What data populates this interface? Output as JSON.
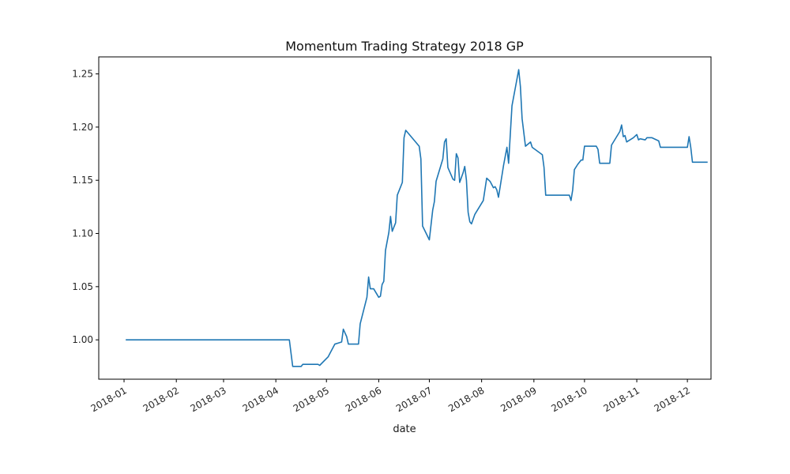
{
  "chart_data": {
    "type": "line",
    "title": "Momentum Trading Strategy 2018 GP",
    "xlabel": "date",
    "ylabel": "",
    "xlim": [
      "2017-12-17",
      "2018-12-15"
    ],
    "ylim": [
      0.963,
      1.266
    ],
    "grid": false,
    "x_ticks": [
      "2018-01",
      "2018-02",
      "2018-03",
      "2018-04",
      "2018-05",
      "2018-06",
      "2018-07",
      "2018-08",
      "2018-09",
      "2018-10",
      "2018-11",
      "2018-12"
    ],
    "y_ticks": [
      "1.00",
      "1.05",
      "1.10",
      "1.15",
      "1.20",
      "1.25"
    ],
    "series": [
      {
        "color": "#1f77b4",
        "points": [
          [
            "2018-01-02",
            1.0
          ],
          [
            "2018-04-09",
            1.0
          ],
          [
            "2018-04-11",
            0.975
          ],
          [
            "2018-04-16",
            0.975
          ],
          [
            "2018-04-17",
            0.977
          ],
          [
            "2018-04-26",
            0.977
          ],
          [
            "2018-04-27",
            0.976
          ],
          [
            "2018-05-02",
            0.984
          ],
          [
            "2018-05-03",
            0.987
          ],
          [
            "2018-05-06",
            0.996
          ],
          [
            "2018-05-08",
            0.997
          ],
          [
            "2018-05-10",
            0.998
          ],
          [
            "2018-05-11",
            1.01
          ],
          [
            "2018-05-13",
            1.003
          ],
          [
            "2018-05-14",
            0.996
          ],
          [
            "2018-05-20",
            0.996
          ],
          [
            "2018-05-21",
            1.015
          ],
          [
            "2018-05-25",
            1.04
          ],
          [
            "2018-05-26",
            1.059
          ],
          [
            "2018-05-27",
            1.048
          ],
          [
            "2018-05-29",
            1.048
          ],
          [
            "2018-06-01",
            1.04
          ],
          [
            "2018-06-02",
            1.041
          ],
          [
            "2018-06-03",
            1.052
          ],
          [
            "2018-06-04",
            1.055
          ],
          [
            "2018-06-05",
            1.084
          ],
          [
            "2018-06-07",
            1.101
          ],
          [
            "2018-06-08",
            1.116
          ],
          [
            "2018-06-09",
            1.102
          ],
          [
            "2018-06-11",
            1.11
          ],
          [
            "2018-06-12",
            1.136
          ],
          [
            "2018-06-15",
            1.148
          ],
          [
            "2018-06-16",
            1.19
          ],
          [
            "2018-06-17",
            1.197
          ],
          [
            "2018-06-25",
            1.182
          ],
          [
            "2018-06-26",
            1.17
          ],
          [
            "2018-06-27",
            1.107
          ],
          [
            "2018-07-01",
            1.094
          ],
          [
            "2018-07-03",
            1.122
          ],
          [
            "2018-07-04",
            1.13
          ],
          [
            "2018-07-05",
            1.149
          ],
          [
            "2018-07-09",
            1.17
          ],
          [
            "2018-07-10",
            1.186
          ],
          [
            "2018-07-11",
            1.189
          ],
          [
            "2018-07-12",
            1.162
          ],
          [
            "2018-07-15",
            1.151
          ],
          [
            "2018-07-16",
            1.15
          ],
          [
            "2018-07-17",
            1.175
          ],
          [
            "2018-07-18",
            1.171
          ],
          [
            "2018-07-19",
            1.148
          ],
          [
            "2018-07-21",
            1.157
          ],
          [
            "2018-07-22",
            1.163
          ],
          [
            "2018-07-23",
            1.15
          ],
          [
            "2018-07-24",
            1.12
          ],
          [
            "2018-07-25",
            1.111
          ],
          [
            "2018-07-26",
            1.109
          ],
          [
            "2018-07-28",
            1.118
          ],
          [
            "2018-08-02",
            1.131
          ],
          [
            "2018-08-04",
            1.152
          ],
          [
            "2018-08-06",
            1.149
          ],
          [
            "2018-08-08",
            1.143
          ],
          [
            "2018-08-09",
            1.144
          ],
          [
            "2018-08-10",
            1.141
          ],
          [
            "2018-08-11",
            1.134
          ],
          [
            "2018-08-14",
            1.164
          ],
          [
            "2018-08-16",
            1.181
          ],
          [
            "2018-08-17",
            1.166
          ],
          [
            "2018-08-19",
            1.22
          ],
          [
            "2018-08-23",
            1.254
          ],
          [
            "2018-08-24",
            1.238
          ],
          [
            "2018-08-25",
            1.208
          ],
          [
            "2018-08-27",
            1.182
          ],
          [
            "2018-08-30",
            1.186
          ],
          [
            "2018-08-31",
            1.181
          ],
          [
            "2018-09-06",
            1.174
          ],
          [
            "2018-09-07",
            1.162
          ],
          [
            "2018-09-08",
            1.136
          ],
          [
            "2018-09-22",
            1.136
          ],
          [
            "2018-09-23",
            1.131
          ],
          [
            "2018-09-24",
            1.141
          ],
          [
            "2018-09-25",
            1.16
          ],
          [
            "2018-09-27",
            1.165
          ],
          [
            "2018-09-29",
            1.169
          ],
          [
            "2018-09-30",
            1.169
          ],
          [
            "2018-10-01",
            1.182
          ],
          [
            "2018-10-08",
            1.182
          ],
          [
            "2018-10-09",
            1.179
          ],
          [
            "2018-10-10",
            1.166
          ],
          [
            "2018-10-16",
            1.166
          ],
          [
            "2018-10-17",
            1.183
          ],
          [
            "2018-10-22",
            1.196
          ],
          [
            "2018-10-23",
            1.202
          ],
          [
            "2018-10-24",
            1.191
          ],
          [
            "2018-10-25",
            1.192
          ],
          [
            "2018-10-26",
            1.186
          ],
          [
            "2018-10-30",
            1.19
          ],
          [
            "2018-11-01",
            1.193
          ],
          [
            "2018-11-02",
            1.188
          ],
          [
            "2018-11-03",
            1.189
          ],
          [
            "2018-11-06",
            1.188
          ],
          [
            "2018-11-07",
            1.19
          ],
          [
            "2018-11-10",
            1.19
          ],
          [
            "2018-11-14",
            1.187
          ],
          [
            "2018-11-15",
            1.181
          ],
          [
            "2018-12-01",
            1.181
          ],
          [
            "2018-12-02",
            1.191
          ],
          [
            "2018-12-03",
            1.181
          ],
          [
            "2018-12-04",
            1.167
          ],
          [
            "2018-12-13",
            1.167
          ]
        ]
      }
    ]
  }
}
